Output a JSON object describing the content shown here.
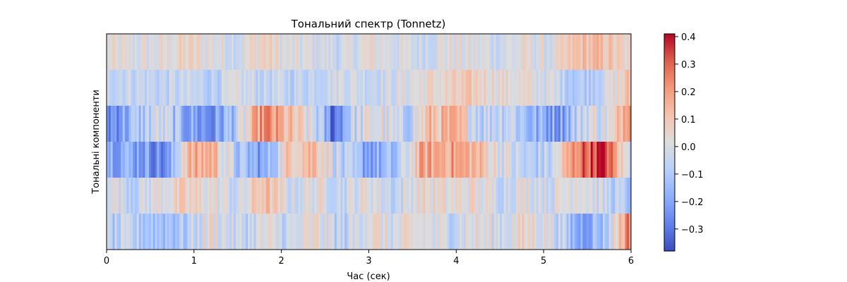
{
  "chart_data": {
    "type": "heatmap",
    "title": "Тональний спектр (Tonnetz)",
    "xlabel": "Час (сек)",
    "ylabel": "Тональні компоненти",
    "xlim": [
      0,
      6
    ],
    "x_ticks": [
      "0",
      "1",
      "2",
      "3",
      "4",
      "5",
      "6"
    ],
    "rows": 6,
    "columns": 260,
    "colormap": "coolwarm",
    "color_range": [
      -0.38,
      0.41
    ],
    "colorbar_ticks": [
      "0.4",
      "0.3",
      "0.2",
      "0.1",
      "0.0",
      "−0.1",
      "−0.2",
      "−0.3"
    ],
    "colorbar_tick_values": [
      0.4,
      0.3,
      0.2,
      0.1,
      0.0,
      -0.1,
      -0.2,
      -0.3
    ],
    "row_profiles": [
      [
        [
          0,
          0.02
        ],
        [
          0.3,
          0.0
        ],
        [
          0.6,
          0.01
        ],
        [
          0.9,
          0.06
        ],
        [
          1.2,
          0.02
        ],
        [
          1.5,
          -0.02
        ],
        [
          1.8,
          0.08
        ],
        [
          2.1,
          -0.01
        ],
        [
          2.4,
          0.0
        ],
        [
          2.7,
          -0.04
        ],
        [
          3.0,
          0.03
        ],
        [
          3.3,
          0.0
        ],
        [
          3.6,
          -0.03
        ],
        [
          3.9,
          0.02
        ],
        [
          4.2,
          0.0
        ],
        [
          4.5,
          -0.02
        ],
        [
          4.8,
          0.02
        ],
        [
          5.1,
          -0.01
        ],
        [
          5.4,
          0.12
        ],
        [
          5.7,
          0.12
        ],
        [
          6.0,
          0.02
        ]
      ],
      [
        [
          0,
          -0.03
        ],
        [
          0.3,
          -0.04
        ],
        [
          0.6,
          -0.06
        ],
        [
          0.9,
          -0.05
        ],
        [
          1.2,
          -0.07
        ],
        [
          1.5,
          -0.02
        ],
        [
          1.8,
          -0.05
        ],
        [
          2.1,
          -0.06
        ],
        [
          2.4,
          -0.04
        ],
        [
          2.7,
          0.0
        ],
        [
          3.0,
          -0.03
        ],
        [
          3.3,
          -0.02
        ],
        [
          3.6,
          0.03
        ],
        [
          3.9,
          0.05
        ],
        [
          4.2,
          0.08
        ],
        [
          4.5,
          0.04
        ],
        [
          4.8,
          0.02
        ],
        [
          5.1,
          -0.02
        ],
        [
          5.4,
          -0.1
        ],
        [
          5.7,
          -0.03
        ],
        [
          6.0,
          0.12
        ]
      ],
      [
        [
          0,
          -0.26
        ],
        [
          0.3,
          -0.15
        ],
        [
          0.6,
          -0.02
        ],
        [
          0.9,
          -0.18
        ],
        [
          1.2,
          -0.26
        ],
        [
          1.5,
          -0.08
        ],
        [
          1.8,
          0.24
        ],
        [
          2.1,
          0.1
        ],
        [
          2.4,
          -0.05
        ],
        [
          2.6,
          -0.32
        ],
        [
          2.8,
          -0.06
        ],
        [
          3.1,
          0.02
        ],
        [
          3.4,
          -0.1
        ],
        [
          3.7,
          0.12
        ],
        [
          4.0,
          0.12
        ],
        [
          4.3,
          -0.06
        ],
        [
          4.6,
          -0.02
        ],
        [
          4.9,
          -0.18
        ],
        [
          5.2,
          -0.2
        ],
        [
          5.5,
          0.0
        ],
        [
          5.8,
          0.0
        ],
        [
          6.0,
          0.36
        ]
      ],
      [
        [
          0,
          -0.15
        ],
        [
          0.4,
          -0.2
        ],
        [
          0.7,
          -0.28
        ],
        [
          0.9,
          0.12
        ],
        [
          1.2,
          0.18
        ],
        [
          1.5,
          -0.12
        ],
        [
          1.8,
          -0.22
        ],
        [
          2.1,
          0.12
        ],
        [
          2.4,
          0.15
        ],
        [
          2.7,
          -0.1
        ],
        [
          3.0,
          -0.2
        ],
        [
          3.3,
          -0.16
        ],
        [
          3.6,
          0.16
        ],
        [
          3.9,
          0.2
        ],
        [
          4.2,
          0.15
        ],
        [
          4.5,
          0.02
        ],
        [
          4.8,
          -0.1
        ],
        [
          5.1,
          -0.06
        ],
        [
          5.4,
          0.28
        ],
        [
          5.7,
          0.38
        ],
        [
          5.9,
          0.05
        ],
        [
          6.0,
          -0.05
        ]
      ],
      [
        [
          0,
          0.04
        ],
        [
          0.3,
          -0.06
        ],
        [
          0.6,
          0.02
        ],
        [
          0.9,
          0.06
        ],
        [
          1.2,
          0.03
        ],
        [
          1.5,
          -0.05
        ],
        [
          1.8,
          0.14
        ],
        [
          2.1,
          -0.03
        ],
        [
          2.4,
          0.02
        ],
        [
          2.7,
          -0.04
        ],
        [
          3.0,
          0.03
        ],
        [
          3.3,
          -0.06
        ],
        [
          3.6,
          0.05
        ],
        [
          3.9,
          0.02
        ],
        [
          4.2,
          0.04
        ],
        [
          4.5,
          -0.03
        ],
        [
          4.8,
          0.02
        ],
        [
          5.1,
          -0.02
        ],
        [
          5.4,
          0.06
        ],
        [
          5.7,
          -0.05
        ],
        [
          6.0,
          -0.12
        ]
      ],
      [
        [
          0,
          -0.1
        ],
        [
          0.3,
          -0.08
        ],
        [
          0.6,
          -0.12
        ],
        [
          0.9,
          -0.1
        ],
        [
          1.2,
          0.04
        ],
        [
          1.5,
          -0.06
        ],
        [
          1.8,
          0.0
        ],
        [
          2.1,
          -0.05
        ],
        [
          2.4,
          0.03
        ],
        [
          2.7,
          -0.08
        ],
        [
          3.0,
          0.05
        ],
        [
          3.3,
          -0.02
        ],
        [
          3.6,
          0.02
        ],
        [
          3.9,
          -0.04
        ],
        [
          4.2,
          0.02
        ],
        [
          4.5,
          -0.02
        ],
        [
          4.8,
          0.05
        ],
        [
          5.1,
          0.0
        ],
        [
          5.4,
          -0.2
        ],
        [
          5.7,
          -0.12
        ],
        [
          6.0,
          0.3
        ]
      ]
    ],
    "row_jitter": [
      0.07,
      0.07,
      0.11,
      0.1,
      0.08,
      0.09
    ]
  }
}
